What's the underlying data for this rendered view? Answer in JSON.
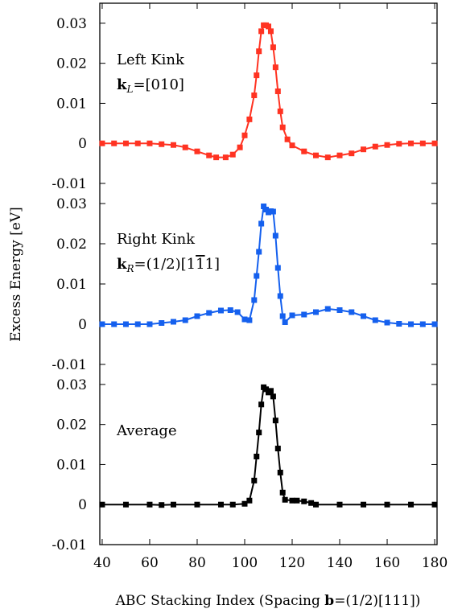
{
  "chart_data": {
    "type": "line",
    "xlabel": "ABC Stacking Index (Spacing b=(1/2)[111])",
    "xlabel_parts": {
      "prefix": "ABC Stacking Index (Spacing ",
      "bold": "b",
      "suffix": "=(1/2)[111])"
    },
    "ylabel": "Excess Energy [eV]",
    "xlim": [
      39,
      181
    ],
    "xticks": [
      40,
      60,
      80,
      100,
      120,
      140,
      160,
      180
    ],
    "grid": false,
    "legend": "none",
    "panels": [
      {
        "name": "Left Kink",
        "label_line1": "Left Kink",
        "label_vec_bold": "k",
        "label_vec_sub": "L",
        "label_vec_rest": "=[010]",
        "color": "#ff3322",
        "ylim": [
          -0.01,
          0.035
        ],
        "yticks": [
          -0.01,
          0,
          0.01,
          0.02,
          0.03
        ],
        "ytick_labels": [
          "-0.01",
          "0",
          "0.01",
          "0.02",
          "0.03"
        ],
        "points": [
          [
            40,
            0
          ],
          [
            45,
            0
          ],
          [
            50,
            0
          ],
          [
            55,
            0
          ],
          [
            60,
            0
          ],
          [
            65,
            -0.0002
          ],
          [
            70,
            -0.0004
          ],
          [
            75,
            -0.001
          ],
          [
            80,
            -0.002
          ],
          [
            85,
            -0.003
          ],
          [
            88,
            -0.0035
          ],
          [
            92,
            -0.0035
          ],
          [
            95,
            -0.0028
          ],
          [
            98,
            -0.001
          ],
          [
            100,
            0.002
          ],
          [
            102,
            0.006
          ],
          [
            104,
            0.012
          ],
          [
            105,
            0.017
          ],
          [
            106,
            0.023
          ],
          [
            107,
            0.028
          ],
          [
            108,
            0.0295
          ],
          [
            109,
            0.0295
          ],
          [
            110,
            0.0292
          ],
          [
            111,
            0.028
          ],
          [
            112,
            0.024
          ],
          [
            113,
            0.019
          ],
          [
            114,
            0.013
          ],
          [
            115,
            0.008
          ],
          [
            116,
            0.004
          ],
          [
            118,
            0.001
          ],
          [
            120,
            -0.0005
          ],
          [
            125,
            -0.002
          ],
          [
            130,
            -0.003
          ],
          [
            135,
            -0.0035
          ],
          [
            140,
            -0.003
          ],
          [
            145,
            -0.0025
          ],
          [
            150,
            -0.0015
          ],
          [
            155,
            -0.0008
          ],
          [
            160,
            -0.0004
          ],
          [
            165,
            -0.0001
          ],
          [
            170,
            0
          ],
          [
            175,
            0
          ],
          [
            180,
            0
          ]
        ]
      },
      {
        "name": "Right Kink",
        "label_line1": "Right Kink",
        "label_vec_bold": "k",
        "label_vec_sub": "R",
        "label_vec_rest": "=(1/2)[1",
        "label_vec_bar": "1",
        "label_vec_end": "1]",
        "color": "#1560ee",
        "ylim": [
          -0.01,
          0.035
        ],
        "yticks": [
          -0.01,
          0,
          0.01,
          0.02,
          0.03
        ],
        "ytick_labels": [
          "-0.01",
          "0",
          "0.01",
          "0.02",
          "0.03"
        ],
        "points": [
          [
            40,
            0
          ],
          [
            45,
            0
          ],
          [
            50,
            0
          ],
          [
            55,
            0
          ],
          [
            60,
            0
          ],
          [
            65,
            0.0003
          ],
          [
            70,
            0.0006
          ],
          [
            75,
            0.001
          ],
          [
            80,
            0.002
          ],
          [
            85,
            0.0028
          ],
          [
            90,
            0.0034
          ],
          [
            94,
            0.0035
          ],
          [
            97,
            0.003
          ],
          [
            100,
            0.0012
          ],
          [
            102,
            0.001
          ],
          [
            104,
            0.006
          ],
          [
            105,
            0.012
          ],
          [
            106,
            0.018
          ],
          [
            107,
            0.025
          ],
          [
            108,
            0.0293
          ],
          [
            109,
            0.0285
          ],
          [
            110,
            0.0278
          ],
          [
            111,
            0.0281
          ],
          [
            112,
            0.028
          ],
          [
            113,
            0.022
          ],
          [
            114,
            0.014
          ],
          [
            115,
            0.007
          ],
          [
            116,
            0.002
          ],
          [
            117,
            0.0005
          ],
          [
            120,
            0.0022
          ],
          [
            125,
            0.0024
          ],
          [
            130,
            0.003
          ],
          [
            135,
            0.0038
          ],
          [
            140,
            0.0035
          ],
          [
            145,
            0.003
          ],
          [
            150,
            0.002
          ],
          [
            155,
            0.001
          ],
          [
            160,
            0.0004
          ],
          [
            165,
            0.0001
          ],
          [
            170,
            0
          ],
          [
            175,
            0
          ],
          [
            180,
            0
          ]
        ]
      },
      {
        "name": "Average",
        "label_line1": "Average",
        "color": "#000000",
        "ylim": [
          -0.01,
          0.035
        ],
        "yticks": [
          -0.01,
          0,
          0.01,
          0.02,
          0.03
        ],
        "ytick_labels": [
          "-0.01",
          "0",
          "0.01",
          "0.02",
          "0.03"
        ],
        "points": [
          [
            40,
            0
          ],
          [
            50,
            0
          ],
          [
            60,
            0
          ],
          [
            65,
            -0.0001
          ],
          [
            70,
            0
          ],
          [
            80,
            0
          ],
          [
            90,
            0
          ],
          [
            95,
            0
          ],
          [
            100,
            0.0002
          ],
          [
            102,
            0.001
          ],
          [
            104,
            0.006
          ],
          [
            105,
            0.012
          ],
          [
            106,
            0.018
          ],
          [
            107,
            0.025
          ],
          [
            108,
            0.0293
          ],
          [
            109,
            0.0288
          ],
          [
            110,
            0.028
          ],
          [
            111,
            0.0284
          ],
          [
            112,
            0.027
          ],
          [
            113,
            0.021
          ],
          [
            114,
            0.014
          ],
          [
            115,
            0.008
          ],
          [
            116,
            0.003
          ],
          [
            117,
            0.0012
          ],
          [
            120,
            0.001
          ],
          [
            122,
            0.001
          ],
          [
            125,
            0.0008
          ],
          [
            128,
            0.0004
          ],
          [
            130,
            0
          ],
          [
            140,
            0
          ],
          [
            150,
            0
          ],
          [
            160,
            0
          ],
          [
            170,
            0
          ],
          [
            180,
            0
          ]
        ]
      }
    ]
  }
}
